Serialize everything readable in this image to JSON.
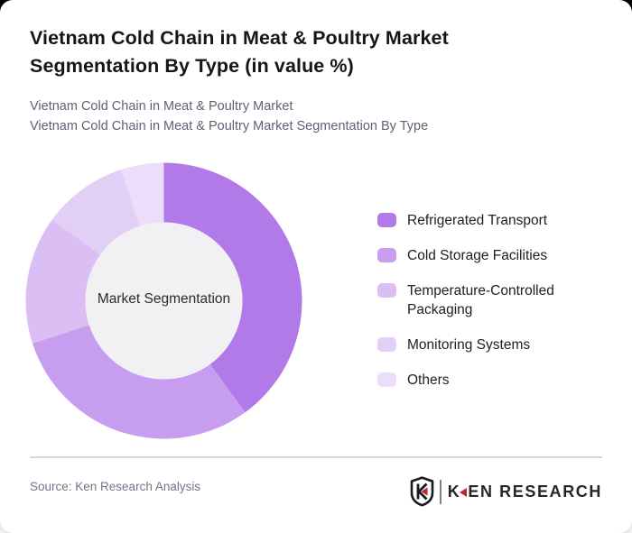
{
  "page": {
    "title": "Vietnam Cold Chain in Meat & Poultry Market Segmentation By Type (in value %)",
    "subtitle_lines": [
      "Vietnam Cold Chain in Meat & Poultry Market",
      "Vietnam Cold Chain in Meat & Poultry Market Segmentation By Type"
    ],
    "source": "Source: Ken Research Analysis"
  },
  "brand": {
    "name": "KEN RESEARCH",
    "shield_letter": "K",
    "wordmark_k": "K",
    "wordmark_rest": "EN RESEARCH",
    "accent_red": "#c0272d",
    "dark": "#23262c"
  },
  "chart_data": {
    "type": "pie",
    "subtype": "donut",
    "title": "Vietnam Cold Chain in Meat & Poultry Market Segmentation By Type (in value %)",
    "center_label": "Market Segmentation",
    "unit": "value %",
    "categories": [
      "Refrigerated Transport",
      "Cold Storage Facilities",
      "Temperature-Controlled Packaging",
      "Monitoring Systems",
      "Others"
    ],
    "values": [
      40,
      30,
      15,
      10,
      5
    ],
    "colors": [
      "#b27ae9",
      "#c79def",
      "#dabef4",
      "#e2cff6",
      "#ecdefa"
    ],
    "hole_color": "#f1f0f2",
    "legend_position": "right",
    "start_angle_deg": 0,
    "direction": "clockwise",
    "outer_radius_px": 153,
    "inner_radius_px": 87
  }
}
